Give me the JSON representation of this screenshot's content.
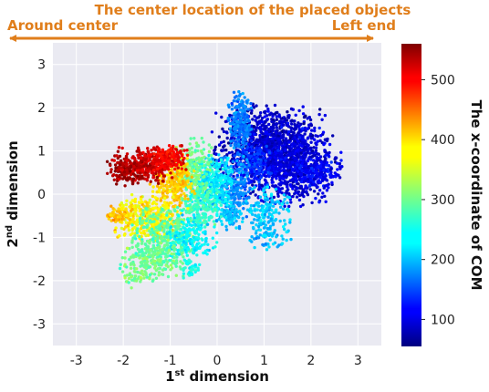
{
  "annotation": {
    "title": "The center location of the placed objects",
    "left_end_label": "Around center",
    "right_end_label": "Left end",
    "arrow_color": "#E07E1B"
  },
  "chart_data": {
    "type": "scatter",
    "xlabel": {
      "prefix": "1",
      "sup": "st",
      "rest": " dimension"
    },
    "ylabel": {
      "prefix": "2",
      "sup": "nd",
      "rest": " dimension"
    },
    "xlim": [
      -3.5,
      3.5
    ],
    "ylim": [
      -3.5,
      3.5
    ],
    "xticks": [
      -3,
      -2,
      -1,
      0,
      1,
      2,
      3
    ],
    "yticks": [
      -3,
      -2,
      -1,
      0,
      1,
      2,
      3
    ],
    "grid": true,
    "plot_background": "#EAEAF2",
    "colorbar": {
      "label": "The x-coordinate of COM",
      "colormap": "jet",
      "range": [
        55,
        560
      ],
      "ticks": [
        100,
        200,
        300,
        400,
        500
      ]
    },
    "clusters": [
      {
        "cx": 1.1,
        "cy": 1.15,
        "sx": 0.55,
        "sy": 0.45,
        "n": 900,
        "value": 90
      },
      {
        "cx": 1.55,
        "cy": 0.7,
        "sx": 0.5,
        "sy": 0.45,
        "n": 700,
        "value": 100
      },
      {
        "cx": 2.15,
        "cy": 0.5,
        "sx": 0.25,
        "sy": 0.15,
        "n": 150,
        "value": 115
      },
      {
        "cx": 0.5,
        "cy": 1.6,
        "sx": 0.12,
        "sy": 0.35,
        "n": 220,
        "value": 180
      },
      {
        "cx": 0.75,
        "cy": 0.7,
        "sx": 0.2,
        "sy": 0.25,
        "n": 160,
        "value": 140
      },
      {
        "cx": 0.35,
        "cy": 0.2,
        "sx": 0.2,
        "sy": 0.35,
        "n": 200,
        "value": 185
      },
      {
        "cx": 0.3,
        "cy": -0.5,
        "sx": 0.15,
        "sy": 0.15,
        "n": 80,
        "value": 210
      },
      {
        "cx": 1.1,
        "cy": -0.55,
        "sx": 0.22,
        "sy": 0.35,
        "n": 200,
        "value": 215
      },
      {
        "cx": -0.1,
        "cy": 0.25,
        "sx": 0.22,
        "sy": 0.35,
        "n": 300,
        "value": 235
      },
      {
        "cx": -0.55,
        "cy": 0.55,
        "sx": 0.2,
        "sy": 0.35,
        "n": 220,
        "value": 300
      },
      {
        "cx": -0.35,
        "cy": -0.3,
        "sx": 0.2,
        "sy": 0.25,
        "n": 170,
        "value": 275
      },
      {
        "cx": -0.95,
        "cy": 0.3,
        "sx": 0.22,
        "sy": 0.3,
        "n": 250,
        "value": 395
      },
      {
        "cx": -1.6,
        "cy": 0.65,
        "sx": 0.3,
        "sy": 0.2,
        "n": 300,
        "value": 525
      },
      {
        "cx": -1.05,
        "cy": 0.85,
        "sx": 0.2,
        "sy": 0.15,
        "n": 170,
        "value": 500
      },
      {
        "cx": -1.95,
        "cy": 0.5,
        "sx": 0.2,
        "sy": 0.15,
        "n": 80,
        "value": 545
      },
      {
        "cx": -1.5,
        "cy": -0.55,
        "sx": 0.35,
        "sy": 0.25,
        "n": 350,
        "value": 375
      },
      {
        "cx": -2.1,
        "cy": -0.5,
        "sx": 0.15,
        "sy": 0.08,
        "n": 60,
        "value": 400
      },
      {
        "cx": -1.1,
        "cy": -0.95,
        "sx": 0.35,
        "sy": 0.3,
        "n": 300,
        "value": 290
      },
      {
        "cx": -0.55,
        "cy": -1.0,
        "sx": 0.25,
        "sy": 0.25,
        "n": 160,
        "value": 240
      },
      {
        "cx": -1.4,
        "cy": -1.55,
        "sx": 0.35,
        "sy": 0.22,
        "n": 200,
        "value": 300
      },
      {
        "cx": -1.7,
        "cy": -1.95,
        "sx": 0.12,
        "sy": 0.1,
        "n": 25,
        "value": 310
      },
      {
        "cx": -0.6,
        "cy": -1.7,
        "sx": 0.12,
        "sy": 0.12,
        "n": 40,
        "value": 255
      }
    ]
  }
}
